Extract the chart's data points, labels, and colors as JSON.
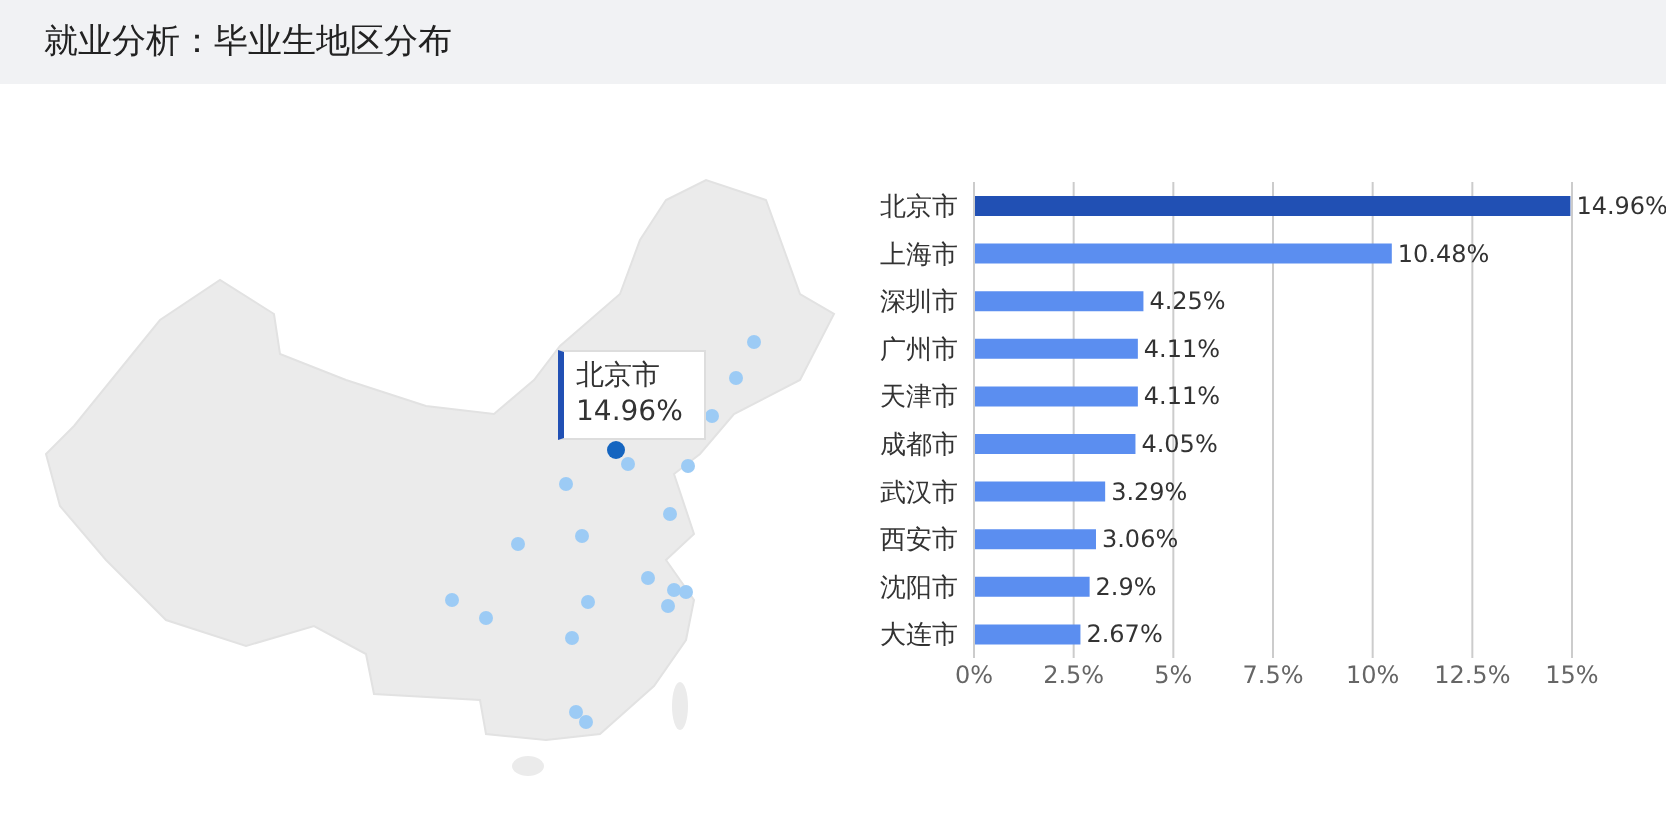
{
  "chart_data": {
    "type": "bar",
    "title": "就业分析：毕业生地区分布",
    "orientation": "horizontal",
    "categories": [
      "北京市",
      "上海市",
      "深圳市",
      "广州市",
      "天津市",
      "成都市",
      "武汉市",
      "西安市",
      "沈阳市",
      "大连市"
    ],
    "values": [
      14.96,
      10.48,
      4.25,
      4.11,
      4.11,
      4.05,
      3.29,
      3.06,
      2.9,
      2.67
    ],
    "colors": [
      "#2150b4",
      "#5b8ef0",
      "#5b8ef0",
      "#5b8ef0",
      "#5b8ef0",
      "#5b8ef0",
      "#5b8ef0",
      "#5b8ef0",
      "#5b8ef0",
      "#5b8ef0"
    ],
    "value_labels": [
      "14.96%",
      "10.48%",
      "4.25%",
      "4.11%",
      "4.11%",
      "4.05%",
      "3.29%",
      "3.06%",
      "2.9%",
      "2.67%"
    ],
    "xlim": [
      0,
      15
    ],
    "xticks": [
      {
        "value": 0,
        "label": "0%"
      },
      {
        "value": 2.5,
        "label": "2.5%"
      },
      {
        "value": 5,
        "label": "5%"
      },
      {
        "value": 7.5,
        "label": "7.5%"
      },
      {
        "value": 10,
        "label": "10%"
      },
      {
        "value": 12.5,
        "label": "12.5%"
      },
      {
        "value": 15,
        "label": "15%"
      }
    ],
    "grid": "x",
    "annotations": [
      "北京市\n14.96%"
    ]
  }
}
